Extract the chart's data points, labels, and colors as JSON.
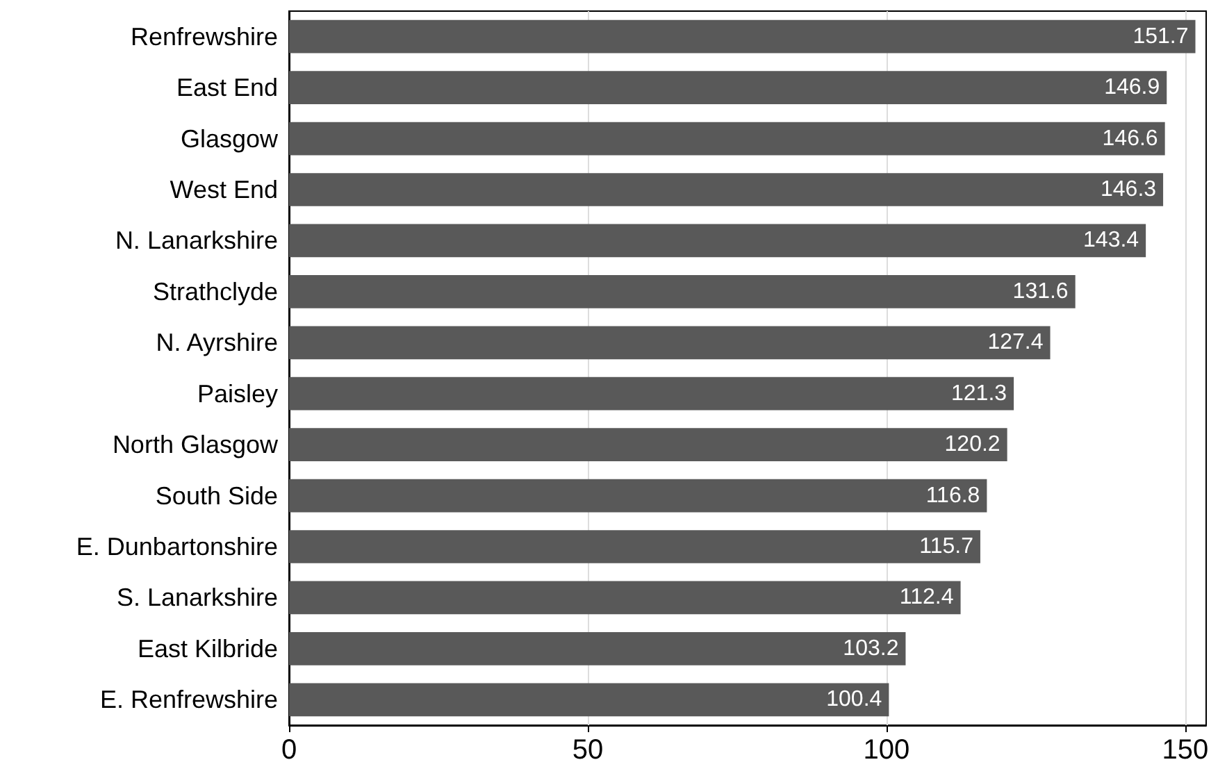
{
  "chart_data": {
    "type": "bar",
    "orientation": "horizontal",
    "categories": [
      "Renfrewshire",
      "East End",
      "Glasgow",
      "West End",
      "N. Lanarkshire",
      "Strathclyde",
      "N. Ayrshire",
      "Paisley",
      "North Glasgow",
      "South Side",
      "E. Dunbartonshire",
      "S. Lanarkshire",
      "East Kilbride",
      "E. Renfrewshire"
    ],
    "values": [
      151.7,
      146.9,
      146.6,
      146.3,
      143.4,
      131.6,
      127.4,
      121.3,
      120.2,
      116.8,
      115.7,
      112.4,
      103.2,
      100.4
    ],
    "color": "#595959",
    "xlim": [
      0,
      153.5
    ],
    "xticks": [
      0,
      50,
      100,
      150
    ],
    "grid": "x",
    "data_labels": true
  }
}
